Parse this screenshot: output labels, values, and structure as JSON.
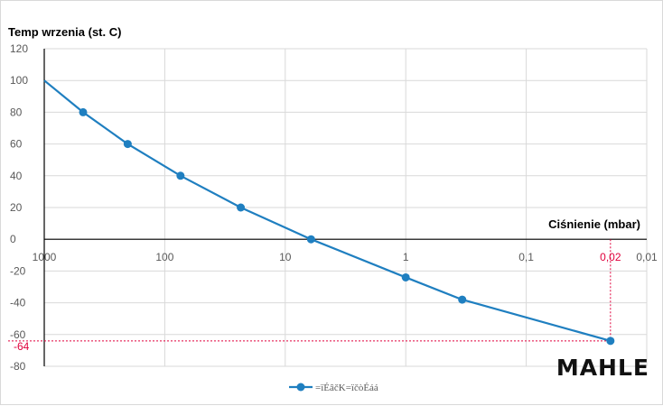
{
  "chart_data": {
    "type": "line",
    "title": "",
    "ylabel": "Temp wrzenia (st. C)",
    "xlabel": "Ciśnienie (mbar)",
    "x_scale": "log-reversed",
    "xlim": [
      1000,
      0.01
    ],
    "ylim": [
      -80,
      120
    ],
    "y_ticks": [
      120,
      100,
      80,
      60,
      40,
      20,
      0,
      -20,
      -40,
      -60,
      -80
    ],
    "x_ticks": [
      "1000",
      "100",
      "10",
      "1",
      "0,1",
      "0,01"
    ],
    "grid": "vertical and horizontal",
    "color": "#1f7fc0",
    "series": [
      {
        "name": "=ïÉâčK=ïčòÉáá",
        "x": [
          1000,
          476,
          203,
          74,
          23.4,
          6.11,
          1.0,
          0.34,
          0.02
        ],
        "y": [
          100,
          80,
          60,
          40,
          20,
          0,
          -24,
          -38,
          -64
        ]
      }
    ],
    "annotation": {
      "x_label": "0,02",
      "y_label": "-64",
      "x": 0.02,
      "y": -64,
      "color": "#e0003c"
    }
  },
  "logo": {
    "text": "MAHLE"
  }
}
